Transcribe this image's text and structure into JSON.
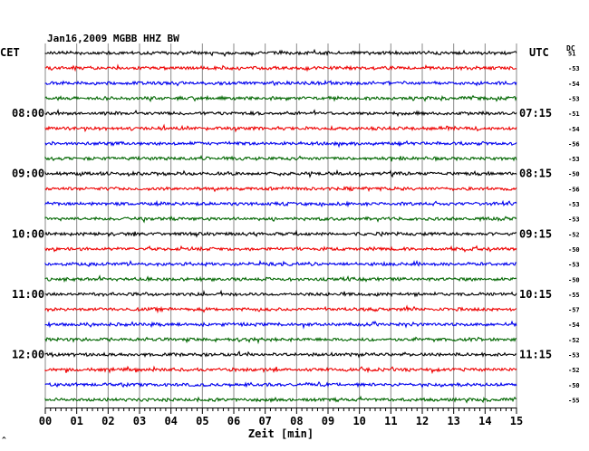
{
  "chart_data": {
    "type": "line",
    "title": "Jan16,2009   MGBB HHZ BW",
    "left_timezone": "CET",
    "right_timezone": "UTC",
    "dc_label": "DC",
    "xlabel": "Zeit [min]",
    "xlim": [
      0,
      15
    ],
    "x_ticks": [
      "00",
      "01",
      "02",
      "03",
      "04",
      "05",
      "06",
      "07",
      "08",
      "09",
      "10",
      "11",
      "12",
      "13",
      "14",
      "15"
    ],
    "trace_colors": [
      "#000000",
      "#ee0000",
      "#0000ee",
      "#006600"
    ],
    "left_hour_labels": [
      {
        "trace": 4,
        "label": "08:00"
      },
      {
        "trace": 8,
        "label": "09:00"
      },
      {
        "trace": 12,
        "label": "10:00"
      },
      {
        "trace": 16,
        "label": "11:00"
      },
      {
        "trace": 20,
        "label": "12:00"
      }
    ],
    "right_hour_labels": [
      {
        "trace": 4,
        "label": "07:15"
      },
      {
        "trace": 8,
        "label": "08:15"
      },
      {
        "trace": 12,
        "label": "09:15"
      },
      {
        "trace": 16,
        "label": "10:15"
      },
      {
        "trace": 20,
        "label": "11:15"
      }
    ],
    "dc_offsets": [
      "51",
      "-53",
      "-54",
      "-53",
      "-51",
      "-54",
      "-56",
      "-53",
      "-50",
      "-56",
      "-53",
      "-53",
      "-52",
      "-50",
      "-53",
      "-50",
      "-55",
      "-57",
      "-54",
      "-52",
      "-53",
      "-52",
      "-50",
      "-55"
    ],
    "grid": true
  },
  "footer_mark": "^"
}
